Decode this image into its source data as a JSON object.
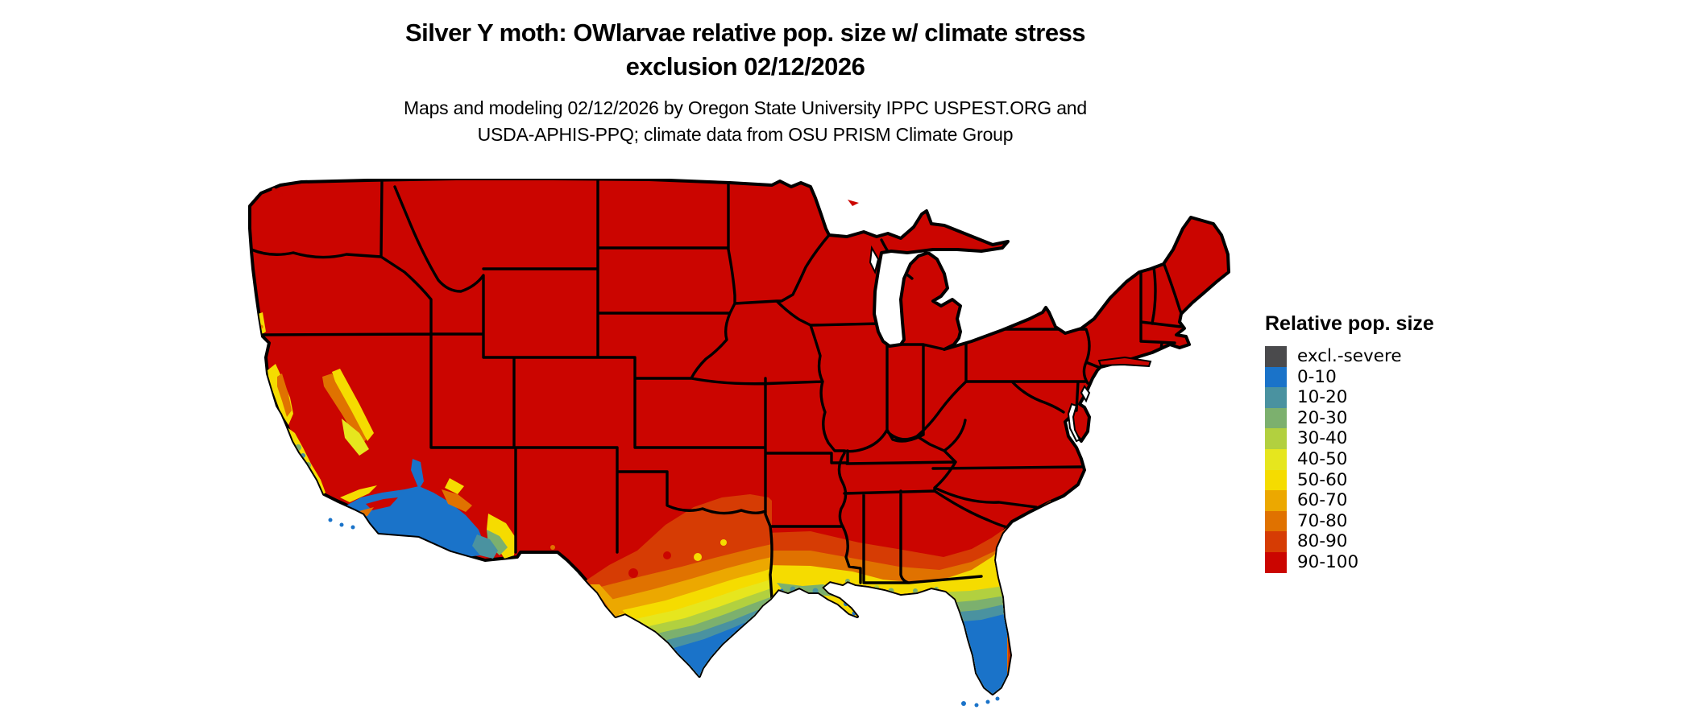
{
  "title": {
    "line1": "Silver Y moth: OWlarvae relative pop. size w/ climate stress",
    "line2": "exclusion 02/12/2026"
  },
  "subtitle": {
    "line1": "Maps and modeling 02/12/2026 by Oregon State University IPPC USPEST.ORG and",
    "line2": "USDA-APHIS-PPQ; climate data from OSU PRISM Climate Group"
  },
  "legend": {
    "title": "Relative pop. size",
    "items": [
      {
        "label": "excl.-severe",
        "color": "#4a4a4c"
      },
      {
        "label": "0-10",
        "color": "#1a73c9"
      },
      {
        "label": "10-20",
        "color": "#4a92a0"
      },
      {
        "label": "20-30",
        "color": "#7cb06e"
      },
      {
        "label": "30-40",
        "color": "#b2d03f"
      },
      {
        "label": "40-50",
        "color": "#e6e61e"
      },
      {
        "label": "50-60",
        "color": "#f5dc00"
      },
      {
        "label": "60-70",
        "color": "#eca800"
      },
      {
        "label": "70-80",
        "color": "#e07200"
      },
      {
        "label": "80-90",
        "color": "#d63c04"
      },
      {
        "label": "90-100",
        "color": "#cb0500"
      }
    ]
  },
  "map": {
    "base_bin": "90-100",
    "base_color": "#cb0500",
    "state_border_color": "#000000",
    "water_color": "#ffffff"
  }
}
